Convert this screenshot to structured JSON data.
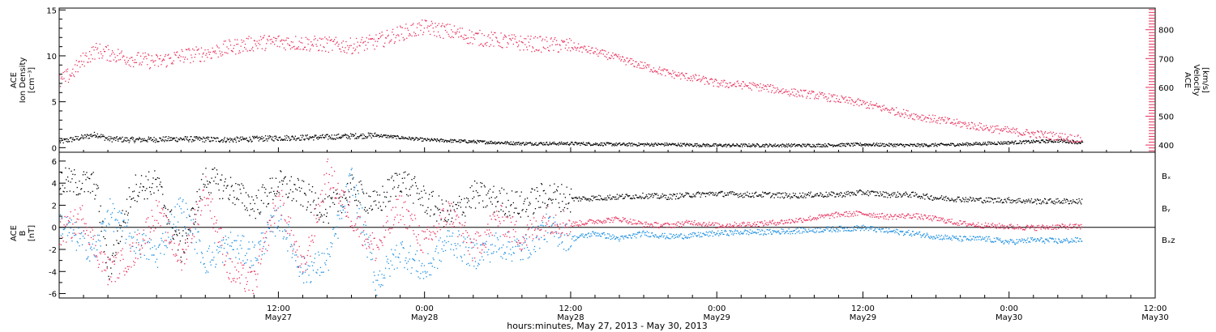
{
  "colors": {
    "black": "#000000",
    "pink": "#e8305c",
    "blue": "#1a8ee0"
  },
  "footer": {
    "xlabel": "hours:minutes, May 27, 2013 - May 30, 2013"
  },
  "x_axis": {
    "range_hours": [
      -6,
      84
    ],
    "ticks": [
      {
        "h": 12,
        "time": "12:00",
        "day": "May27"
      },
      {
        "h": 24,
        "time": "0:00",
        "day": "May28"
      },
      {
        "h": 36,
        "time": "12:00",
        "day": "May28"
      },
      {
        "h": 48,
        "time": "0:00",
        "day": "May29"
      },
      {
        "h": 60,
        "time": "12:00",
        "day": "May29"
      },
      {
        "h": 72,
        "time": "0:00",
        "day": "May30"
      },
      {
        "h": 84,
        "time": "12:00",
        "day": "May30"
      }
    ]
  },
  "chart_data": [
    {
      "type": "scatter",
      "panel": "top",
      "ylabel_left": [
        "ACE",
        "Ion Density",
        "[cm⁻³]"
      ],
      "ylabel_right": [
        "ACE",
        "Velocity",
        "[km/s]"
      ],
      "ylim_left": [
        -0.5,
        15.2
      ],
      "ylim_right": [
        375,
        875
      ],
      "left_ticks": [
        0,
        5,
        10,
        15
      ],
      "right_ticks": [
        400,
        500,
        600,
        700,
        800
      ],
      "series": [
        {
          "color": "#000000",
          "axis": "left",
          "x": [
            -6,
            -4,
            -3,
            -2,
            0,
            4,
            8,
            12,
            16,
            20,
            24,
            28,
            32,
            36,
            40,
            44,
            48,
            52,
            56,
            60,
            64,
            68,
            72,
            76,
            78
          ],
          "values": [
            0.7,
            1.2,
            1.5,
            1.0,
            0.9,
            1.0,
            0.9,
            1.1,
            1.2,
            1.4,
            0.9,
            0.7,
            0.5,
            0.5,
            0.4,
            0.4,
            0.3,
            0.3,
            0.3,
            0.4,
            0.3,
            0.4,
            0.6,
            0.8,
            0.6
          ]
        },
        {
          "color": "#e8305c",
          "axis": "right",
          "x": [
            -6,
            -5,
            -4,
            -3,
            -2,
            0,
            2,
            4,
            6,
            8,
            10,
            12,
            14,
            16,
            18,
            20,
            22,
            24,
            26,
            28,
            30,
            32,
            34,
            36,
            38,
            40,
            42,
            44,
            46,
            48,
            50,
            52,
            54,
            56,
            58,
            60,
            62,
            64,
            66,
            68,
            70,
            72,
            74,
            76,
            78
          ],
          "values": [
            620,
            650,
            700,
            730,
            720,
            700,
            690,
            710,
            720,
            740,
            755,
            760,
            755,
            750,
            745,
            760,
            790,
            810,
            795,
            775,
            765,
            755,
            750,
            745,
            725,
            700,
            675,
            650,
            635,
            615,
            610,
            600,
            585,
            575,
            560,
            545,
            525,
            505,
            490,
            475,
            462,
            450,
            440,
            432,
            420
          ]
        }
      ]
    },
    {
      "type": "scatter",
      "panel": "bottom",
      "ylabel_left": [
        "ACE",
        "B",
        "[nT]"
      ],
      "ylim": [
        -6.4,
        6.8
      ],
      "ticks": [
        -6,
        -4,
        -2,
        0,
        2,
        4,
        6
      ],
      "legend": [
        {
          "label": "Bₓ",
          "color": "#000000"
        },
        {
          "label": "Bᵧ",
          "color": "#1a8ee0"
        },
        {
          "label": "Bₓz",
          "color": "#e8305c"
        }
      ],
      "series": [
        {
          "color": "#000000",
          "x": [
            -6,
            -4,
            -3,
            -2,
            0,
            2,
            4,
            6,
            8,
            10,
            12,
            14,
            16,
            18,
            20,
            22,
            24,
            26,
            28,
            30,
            32,
            34,
            36,
            38,
            40,
            42,
            44,
            46,
            48,
            50,
            52,
            54,
            56,
            58,
            60,
            62,
            64,
            66,
            68,
            70,
            72,
            74,
            76,
            78
          ],
          "values": [
            4.2,
            4.0,
            3.8,
            -4.0,
            3.6,
            4.0,
            -2.0,
            4.5,
            3.5,
            2.0,
            4.0,
            3.0,
            1.5,
            3.5,
            2.0,
            4.5,
            2.5,
            1.0,
            3.0,
            2.5,
            2.0,
            3.0,
            2.6,
            2.7,
            2.8,
            2.9,
            2.8,
            3.0,
            3.1,
            3.0,
            3.0,
            2.9,
            3.0,
            3.0,
            3.2,
            3.0,
            3.0,
            2.7,
            2.6,
            2.5,
            2.5,
            2.4,
            2.4,
            2.4
          ]
        },
        {
          "color": "#1a8ee0",
          "x": [
            -6,
            -4,
            -3,
            -2,
            0,
            2,
            4,
            6,
            8,
            10,
            12,
            14,
            16,
            18,
            20,
            22,
            24,
            26,
            28,
            30,
            32,
            34,
            36,
            38,
            40,
            42,
            44,
            46,
            48,
            50,
            52,
            54,
            56,
            58,
            60,
            62,
            64,
            66,
            68,
            70,
            72,
            74,
            76,
            78
          ],
          "values": [
            0.5,
            -1.5,
            -2.0,
            1.5,
            -1.0,
            -2.5,
            2.0,
            -3.0,
            -1.5,
            -2.5,
            1.0,
            -4.0,
            -3.0,
            4.5,
            -5.0,
            -2.0,
            -4.0,
            -1.0,
            -2.5,
            -1.5,
            -2.0,
            0.0,
            -1.0,
            -0.5,
            -1.0,
            -0.5,
            -0.8,
            -0.7,
            -0.5,
            -0.4,
            -0.4,
            -0.3,
            -0.2,
            -0.1,
            0.0,
            -0.3,
            -0.5,
            -0.8,
            -1.0,
            -1.0,
            -1.3,
            -1.1,
            -1.2,
            -1.1
          ]
        },
        {
          "color": "#e8305c",
          "x": [
            -6,
            -4,
            -3,
            -2,
            0,
            2,
            4,
            6,
            8,
            10,
            12,
            14,
            16,
            18,
            20,
            22,
            24,
            26,
            28,
            30,
            32,
            34,
            36,
            38,
            40,
            42,
            44,
            46,
            48,
            50,
            52,
            54,
            56,
            58,
            60,
            62,
            64,
            66,
            68,
            70,
            72,
            74,
            76,
            78
          ],
          "values": [
            -0.5,
            1.0,
            -2.0,
            -4.0,
            -2.5,
            1.5,
            -3.0,
            3.5,
            -4.0,
            -5.0,
            3.0,
            -4.0,
            5.0,
            1.0,
            -2.0,
            2.0,
            -1.5,
            1.5,
            -2.0,
            1.0,
            -1.0,
            0.8,
            0.3,
            0.6,
            0.8,
            0.3,
            0.2,
            0.5,
            0.2,
            0.3,
            0.4,
            0.6,
            0.9,
            1.2,
            1.3,
            1.0,
            1.1,
            0.8,
            0.4,
            0.2,
            0.1,
            0.0,
            0.1,
            0.1
          ]
        }
      ]
    }
  ]
}
